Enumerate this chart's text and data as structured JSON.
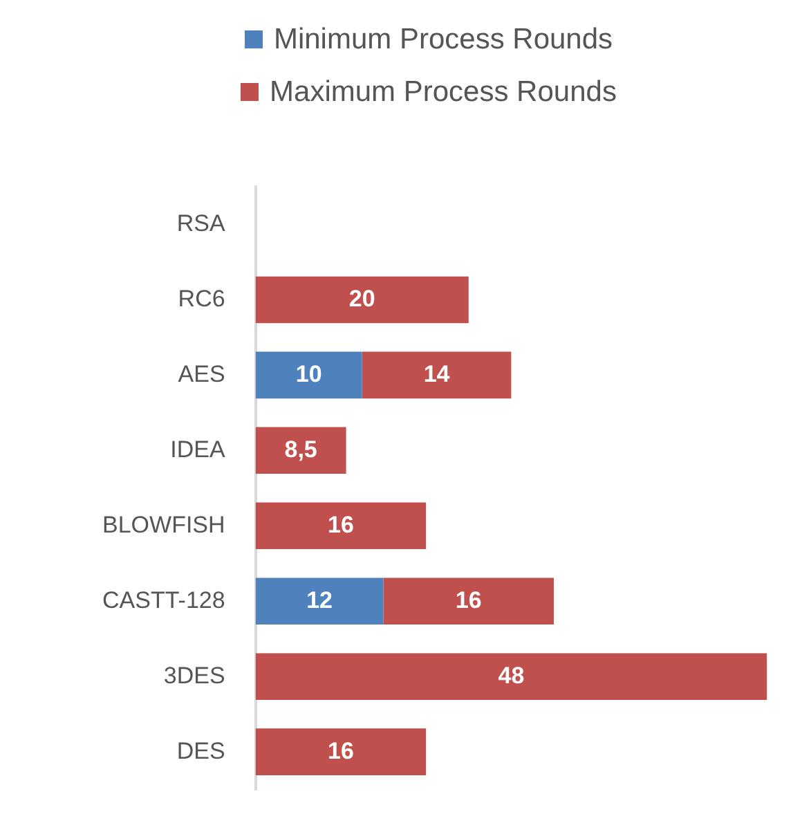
{
  "chart_data": {
    "type": "bar",
    "orientation": "horizontal",
    "stacked": true,
    "categories": [
      "RSA",
      "RC6",
      "AES",
      "IDEA",
      "BLOWFISH",
      "CASTT-128",
      "3DES",
      "DES"
    ],
    "series": [
      {
        "name": "Minimum Process Rounds",
        "color": "#4f81bd",
        "values": [
          null,
          null,
          10,
          null,
          null,
          12,
          null,
          null
        ],
        "value_labels": [
          null,
          null,
          "10",
          null,
          null,
          "12",
          null,
          null
        ]
      },
      {
        "name": "Maximum Process Rounds",
        "color": "#c0504d",
        "values": [
          null,
          20,
          14,
          8.5,
          16,
          16,
          48,
          16
        ],
        "value_labels": [
          null,
          "20",
          "14",
          "8,5",
          "16",
          "16",
          "48",
          "16"
        ]
      }
    ],
    "tick_labels": "y",
    "grid": false,
    "legend": "top"
  }
}
